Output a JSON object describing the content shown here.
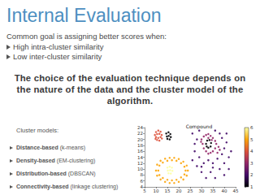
{
  "title": "Internal Evaluation",
  "intro": "Common goal is assigning better scores when:",
  "bullets": [
    "High intra-cluster similarity",
    "Low inter-cluster similarity"
  ],
  "statement": "The choice of the evaluation technique depends on the nature of the data and the cluster model of the algorithm.",
  "cluster_models": {
    "label": "Cluster models:",
    "items": [
      {
        "name": "Distance-based",
        "example": "(k-means)"
      },
      {
        "name": "Density-based",
        "example": "(EM-clustering)"
      },
      {
        "name": "Distribution-based",
        "example": "(DBSCAN)"
      },
      {
        "name": "Connectivity-based",
        "example": "(linkage clustering)"
      }
    ]
  },
  "chart_data": {
    "type": "scatter",
    "title": "Compound",
    "points": [
      [
        10,
        22.5,
        4
      ],
      [
        11,
        23,
        4
      ],
      [
        12,
        22.6,
        4
      ],
      [
        9.5,
        21.5,
        4
      ],
      [
        10.5,
        21.8,
        4
      ],
      [
        11.5,
        21.9,
        4
      ],
      [
        12.5,
        21.5,
        4
      ],
      [
        10,
        20.8,
        4
      ],
      [
        11,
        20.5,
        4
      ],
      [
        12,
        20.8,
        4
      ],
      [
        10.5,
        19.8,
        4
      ],
      [
        11.5,
        19.6,
        4
      ],
      [
        9.8,
        20.2,
        4
      ],
      [
        12.6,
        20.3,
        4
      ],
      [
        14.5,
        22,
        1
      ],
      [
        15.5,
        22.4,
        1
      ],
      [
        16.3,
        21.8,
        1
      ],
      [
        14.8,
        21,
        1
      ],
      [
        15.6,
        21.2,
        1
      ],
      [
        16.5,
        20.8,
        1
      ],
      [
        15,
        20.2,
        1
      ],
      [
        16,
        20,
        1
      ],
      [
        10,
        9.5,
        5
      ],
      [
        10.5,
        11.5,
        5
      ],
      [
        12,
        12.8,
        5
      ],
      [
        14,
        13.5,
        5
      ],
      [
        16,
        13.8,
        5
      ],
      [
        18,
        13.8,
        5
      ],
      [
        20,
        13.4,
        5
      ],
      [
        22,
        12.5,
        5
      ],
      [
        23.5,
        11.2,
        5
      ],
      [
        24,
        9.5,
        5
      ],
      [
        23.5,
        7.8,
        5
      ],
      [
        22,
        6.5,
        5
      ],
      [
        20,
        5.7,
        5
      ],
      [
        18,
        5.3,
        5
      ],
      [
        16,
        5.3,
        5
      ],
      [
        14,
        5.7,
        5
      ],
      [
        12,
        6.5,
        5
      ],
      [
        10.5,
        7.8,
        5
      ],
      [
        11,
        9.5,
        5
      ],
      [
        11.5,
        11.2,
        5
      ],
      [
        13,
        12.2,
        5
      ],
      [
        15,
        12.8,
        5
      ],
      [
        17,
        13,
        5
      ],
      [
        19,
        12.8,
        5
      ],
      [
        21,
        12,
        5
      ],
      [
        22.5,
        10.8,
        5
      ],
      [
        23,
        9.5,
        5
      ],
      [
        22.5,
        8.2,
        5
      ],
      [
        21,
        7.2,
        5
      ],
      [
        19,
        6.4,
        5
      ],
      [
        17,
        6.2,
        5
      ],
      [
        15,
        6.4,
        5
      ],
      [
        13,
        7,
        5
      ],
      [
        11.5,
        8,
        5
      ],
      [
        15,
        10.5,
        6
      ],
      [
        16,
        10.8,
        6
      ],
      [
        17,
        10.5,
        6
      ],
      [
        15.2,
        9.5,
        6
      ],
      [
        16.2,
        9.6,
        6
      ],
      [
        17.2,
        9.4,
        6
      ],
      [
        15.5,
        8.6,
        6
      ],
      [
        16.5,
        8.5,
        6
      ],
      [
        30,
        20,
        3
      ],
      [
        31,
        21,
        3
      ],
      [
        32,
        21.5,
        3
      ],
      [
        33,
        21.8,
        3
      ],
      [
        34,
        21.2,
        3
      ],
      [
        35,
        20.5,
        3
      ],
      [
        36,
        19.5,
        3
      ],
      [
        36.5,
        18.5,
        3
      ],
      [
        36,
        17,
        3
      ],
      [
        35,
        16,
        3
      ],
      [
        34,
        15.5,
        3
      ],
      [
        33,
        15.2,
        3
      ],
      [
        32,
        16,
        3
      ],
      [
        31,
        17,
        3
      ],
      [
        30.5,
        18.5,
        3
      ],
      [
        29.8,
        19.2,
        3
      ],
      [
        37.5,
        17.5,
        3
      ],
      [
        38,
        16.5,
        3
      ],
      [
        37,
        15.5,
        3
      ],
      [
        33,
        20.5,
        3
      ],
      [
        34.5,
        19.8,
        3
      ],
      [
        32,
        18.5,
        1
      ],
      [
        32.5,
        19.6,
        1
      ],
      [
        33.5,
        19.8,
        1
      ],
      [
        34.2,
        18.8,
        1
      ],
      [
        34,
        17.6,
        1
      ],
      [
        33,
        17.2,
        1
      ],
      [
        32.3,
        17.6,
        1
      ],
      [
        26,
        22,
        2
      ],
      [
        28,
        20,
        2
      ],
      [
        27,
        16,
        2
      ],
      [
        29,
        14,
        2
      ],
      [
        31,
        12,
        2
      ],
      [
        33,
        13,
        2
      ],
      [
        35,
        12,
        2
      ],
      [
        37,
        13.5,
        2
      ],
      [
        39,
        15,
        2
      ],
      [
        40,
        17,
        2
      ],
      [
        41,
        19,
        2
      ],
      [
        39,
        20.5,
        2
      ],
      [
        38,
        22,
        2
      ],
      [
        36,
        23,
        2
      ],
      [
        40,
        12,
        2
      ],
      [
        42,
        14,
        2
      ],
      [
        38,
        10,
        2
      ],
      [
        34,
        9,
        2
      ],
      [
        30,
        9,
        2
      ],
      [
        28,
        11,
        2
      ],
      [
        26,
        13,
        2
      ],
      [
        32,
        7,
        2
      ],
      [
        36,
        7,
        2
      ],
      [
        40,
        8,
        2
      ],
      [
        42,
        10,
        2
      ],
      [
        43,
        16,
        2
      ],
      [
        41,
        22,
        2
      ],
      [
        29,
        23,
        2
      ],
      [
        27,
        18.5,
        2
      ],
      [
        35,
        10.5,
        2
      ],
      [
        30,
        10.8,
        2
      ]
    ],
    "xlim": [
      5,
      45
    ],
    "xticks": [
      5,
      10,
      15,
      20,
      25,
      30,
      35,
      40,
      45
    ],
    "ylim": [
      4,
      24
    ],
    "yticks": [
      4,
      6,
      8,
      10,
      12,
      14,
      16,
      18,
      20,
      22,
      24
    ],
    "color_range": [
      1,
      6
    ],
    "color_ticks": [
      1,
      2,
      3,
      4,
      5,
      6
    ]
  }
}
